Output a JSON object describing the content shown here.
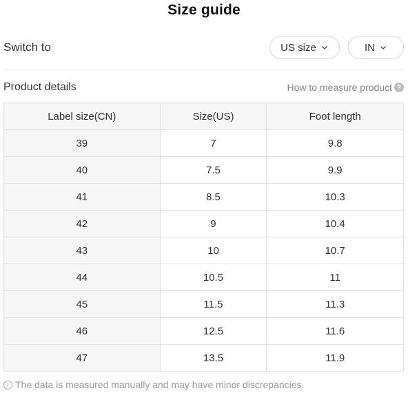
{
  "header": {
    "title": "Size guide"
  },
  "switch": {
    "label": "Switch to",
    "size_system": "US size",
    "unit": "IN"
  },
  "product": {
    "label": "Product details",
    "how_to_measure": "How to measure product"
  },
  "table": {
    "headers": [
      "Label size(CN)",
      "Size(US)",
      "Foot length"
    ],
    "rows": [
      [
        "39",
        "7",
        "9.8"
      ],
      [
        "40",
        "7.5",
        "9.9"
      ],
      [
        "41",
        "8.5",
        "10.3"
      ],
      [
        "42",
        "9",
        "10.4"
      ],
      [
        "43",
        "10",
        "10.7"
      ],
      [
        "44",
        "10.5",
        "11"
      ],
      [
        "45",
        "11.5",
        "11.3"
      ],
      [
        "46",
        "12.5",
        "11.6"
      ],
      [
        "47",
        "13.5",
        "11.9"
      ]
    ]
  },
  "footnote": "The data is measured manually and may have minor discrepancies.",
  "icons": {
    "dropdown": "chevron-down-icon",
    "help": "question-icon",
    "info": "info-icon"
  },
  "colors": {
    "border": "#e2e2e2",
    "header_bg": "#f6f6f6",
    "muted_text": "#888888"
  }
}
